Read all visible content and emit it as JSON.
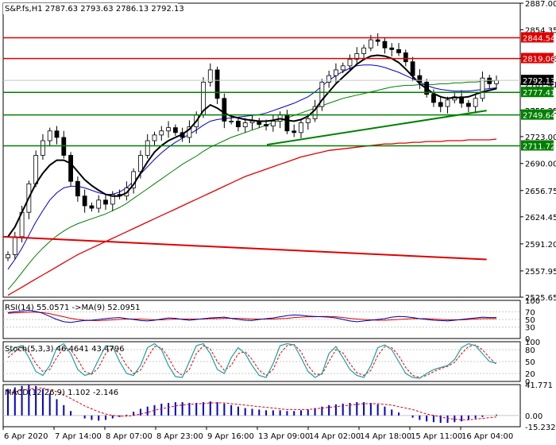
{
  "main_header": "S&P.fs,H1  2787.63 2793.63 2786.13 2792.13",
  "rsi_header": "RSI(14) 55.0571  ->MA(9) 52.0951",
  "stoch_header": "Stoch(5,3,3) 46.4641 43.4796",
  "macd_header": "MACD(12,26,9) 1.102 -2.146",
  "colors": {
    "frame": "#000000",
    "grid": "#c8c8c8",
    "hline_red": "#e00000",
    "hline_green": "#008000",
    "ma_black": "#000000",
    "ma_blue": "#0000cc",
    "ma_green": "#008000",
    "ma_red": "#e00000",
    "label_red_bg": "#e00000",
    "label_green_bg": "#008000",
    "label_current_bg": "#000000",
    "candle": "#000000",
    "rsi_line": "#0000aa",
    "rsi_signal": "#e00000",
    "stoch_main": "#20a0a0",
    "stoch_signal": "#e00000",
    "macd_hist": "#0000cc",
    "macd_signal": "#e00000"
  },
  "chart_data": [
    {
      "type": "candlestick",
      "symbol": "S&P.fs",
      "timeframe": "H1",
      "ohlc_last": {
        "open": 2787.63,
        "high": 2793.63,
        "low": 2786.13,
        "close": 2792.13
      },
      "ylim": [
        2525.65,
        2887.0
      ],
      "y_ticks": [
        2887.0,
        2854.35,
        2819.06,
        2787.41,
        2755.25,
        2723.0,
        2690.0,
        2656.75,
        2624.45,
        2591.2,
        2557.95,
        2525.65
      ],
      "x_ticks": [
        "6 Apr 2020",
        "7 Apr 14:00",
        "8 Apr 07:00",
        "8 Apr 23:00",
        "9 Apr 16:00",
        "13 Apr 09:00",
        "14 Apr 02:00",
        "14 Apr 18:00",
        "15 Apr 11:00",
        "16 Apr 04:00"
      ],
      "horizontal_levels": [
        {
          "value": 2844.54,
          "label": "2844.54",
          "color": "red"
        },
        {
          "value": 2819.06,
          "label": "2819.06",
          "color": "red"
        },
        {
          "value": 2792.13,
          "label": "2792.13",
          "color": "current"
        },
        {
          "value": 2777.41,
          "label": "2777.41",
          "color": "green"
        },
        {
          "value": 2749.64,
          "label": "2749.64",
          "color": "green"
        },
        {
          "value": 2711.72,
          "label": "2711.72",
          "color": "green"
        }
      ],
      "trendlines": [
        {
          "name": "uptrend-support",
          "color": "green",
          "from": [
            0.51,
            2713
          ],
          "to": [
            0.935,
            2755
          ]
        },
        {
          "name": "downtrend-resistance",
          "color": "red",
          "from": [
            0.0,
            2600
          ],
          "to": [
            0.935,
            2572
          ]
        }
      ],
      "close_path": [
        2578,
        2600,
        2630,
        2665,
        2700,
        2718,
        2730,
        2722,
        2700,
        2668,
        2650,
        2638,
        2635,
        2645,
        2640,
        2652,
        2650,
        2660,
        2680,
        2700,
        2718,
        2725,
        2730,
        2734,
        2728,
        2722,
        2735,
        2750,
        2790,
        2805,
        2770,
        2742,
        2742,
        2735,
        2740,
        2742,
        2738,
        2736,
        2742,
        2750,
        2730,
        2728,
        2740,
        2745,
        2760,
        2790,
        2798,
        2805,
        2810,
        2818,
        2825,
        2832,
        2842,
        2840,
        2832,
        2830,
        2826,
        2815,
        2798,
        2790,
        2775,
        2765,
        2760,
        2768,
        2772,
        2764,
        2760,
        2770,
        2795,
        2788,
        2792
      ],
      "ma_black": [
        2600,
        2612,
        2630,
        2648,
        2665,
        2678,
        2688,
        2694,
        2694,
        2690,
        2680,
        2670,
        2663,
        2657,
        2652,
        2650,
        2650,
        2654,
        2664,
        2678,
        2692,
        2704,
        2712,
        2718,
        2722,
        2726,
        2732,
        2742,
        2755,
        2762,
        2758,
        2752,
        2748,
        2746,
        2744,
        2743,
        2742,
        2742,
        2743,
        2745,
        2743,
        2742,
        2744,
        2748,
        2756,
        2768,
        2778,
        2788,
        2796,
        2804,
        2812,
        2818,
        2822,
        2823,
        2822,
        2819,
        2814,
        2806,
        2797,
        2788,
        2782,
        2776,
        2772,
        2770,
        2771,
        2771,
        2772,
        2775,
        2778,
        2780,
        2782
      ],
      "ma_blue": [
        2560,
        2572,
        2586,
        2602,
        2618,
        2632,
        2645,
        2654,
        2660,
        2662,
        2662,
        2660,
        2657,
        2654,
        2652,
        2652,
        2655,
        2660,
        2668,
        2677,
        2686,
        2695,
        2703,
        2710,
        2716,
        2721,
        2726,
        2731,
        2737,
        2742,
        2744,
        2745,
        2746,
        2747,
        2748,
        2749,
        2750,
        2752,
        2755,
        2758,
        2761,
        2764,
        2768,
        2772,
        2778,
        2785,
        2792,
        2798,
        2803,
        2807,
        2810,
        2811,
        2811,
        2810,
        2808,
        2805,
        2802,
        2798,
        2794,
        2790,
        2786,
        2783,
        2781,
        2780,
        2779,
        2779,
        2779,
        2780,
        2781,
        2782,
        2783
      ],
      "ma_green": [
        2535,
        2545,
        2556,
        2567,
        2577,
        2586,
        2594,
        2601,
        2607,
        2612,
        2616,
        2619,
        2622,
        2625,
        2628,
        2632,
        2636,
        2641,
        2647,
        2653,
        2659,
        2665,
        2671,
        2677,
        2683,
        2689,
        2694,
        2699,
        2705,
        2710,
        2714,
        2718,
        2722,
        2725,
        2728,
        2731,
        2734,
        2737,
        2740,
        2743,
        2746,
        2749,
        2752,
        2755,
        2758,
        2761,
        2764,
        2767,
        2770,
        2772,
        2774,
        2776,
        2778,
        2780,
        2782,
        2784,
        2785,
        2786,
        2786,
        2787,
        2787,
        2787,
        2788,
        2788,
        2789,
        2789,
        2790,
        2790,
        2791,
        2791,
        2792
      ],
      "ma_red": [
        2528,
        2533,
        2538,
        2543,
        2548,
        2553,
        2558,
        2563,
        2568,
        2573,
        2578,
        2582,
        2586,
        2590,
        2594,
        2598,
        2602,
        2606,
        2610,
        2614,
        2618,
        2622,
        2626,
        2630,
        2634,
        2638,
        2642,
        2646,
        2650,
        2654,
        2658,
        2662,
        2666,
        2670,
        2674,
        2677,
        2680,
        2683,
        2686,
        2689,
        2692,
        2695,
        2698,
        2700,
        2702,
        2704,
        2706,
        2707,
        2708,
        2709,
        2710,
        2711,
        2712,
        2713,
        2714,
        2714,
        2715,
        2715,
        2716,
        2716,
        2717,
        2717,
        2717,
        2718,
        2718,
        2718,
        2719,
        2719,
        2719,
        2719,
        2720
      ]
    },
    {
      "type": "line",
      "name": "RSI(14)",
      "ylim": [
        0,
        100
      ],
      "y_ticks": [
        100,
        70,
        50,
        30,
        0
      ],
      "series": [
        {
          "name": "RSI(14)",
          "last": 55.0571,
          "values": [
            68,
            70,
            72,
            74,
            71,
            66,
            58,
            50,
            44,
            42,
            45,
            47,
            48,
            50,
            52,
            54,
            55,
            52,
            50,
            47,
            46,
            48,
            51,
            54,
            53,
            50,
            48,
            50,
            52,
            54,
            55,
            56,
            53,
            50,
            48,
            47,
            50,
            52,
            54,
            57,
            60,
            62,
            61,
            59,
            58,
            57,
            56,
            54,
            50,
            46,
            44,
            46,
            48,
            50,
            52,
            56,
            58,
            57,
            55,
            52,
            50,
            48,
            47,
            46,
            48,
            50,
            52,
            54,
            56,
            55,
            55
          ]
        },
        {
          "name": "MA(9)",
          "last": 52.0951,
          "values": [
            66,
            67,
            68,
            69,
            69,
            68,
            65,
            61,
            57,
            53,
            50,
            48,
            47,
            47,
            48,
            49,
            50,
            51,
            51,
            51,
            50,
            49,
            49,
            50,
            51,
            51,
            51,
            51,
            51,
            52,
            52,
            53,
            53,
            53,
            52,
            51,
            51,
            51,
            51,
            52,
            53,
            55,
            56,
            57,
            57,
            58,
            58,
            57,
            55,
            53,
            51,
            50,
            49,
            48,
            48,
            49,
            50,
            51,
            52,
            52,
            52,
            51,
            50,
            49,
            49,
            49,
            50,
            51,
            52,
            52,
            52
          ]
        }
      ]
    },
    {
      "type": "line",
      "name": "Stoch(5,3,3)",
      "ylim": [
        0,
        100
      ],
      "y_ticks": [
        100,
        80,
        50,
        20,
        0
      ],
      "series": [
        {
          "name": "%K",
          "last": 46.4641,
          "values": [
            70,
            85,
            90,
            60,
            25,
            15,
            40,
            85,
            95,
            70,
            30,
            15,
            20,
            55,
            90,
            88,
            50,
            20,
            15,
            40,
            85,
            95,
            80,
            40,
            12,
            10,
            50,
            90,
            95,
            70,
            30,
            20,
            60,
            85,
            70,
            40,
            15,
            10,
            45,
            90,
            95,
            92,
            60,
            25,
            10,
            20,
            70,
            88,
            60,
            30,
            15,
            10,
            40,
            85,
            92,
            80,
            50,
            20,
            10,
            8,
            20,
            30,
            35,
            40,
            55,
            85,
            95,
            90,
            70,
            50,
            46
          ]
        },
        {
          "name": "%D",
          "last": 43.4796,
          "values": [
            60,
            75,
            85,
            75,
            45,
            25,
            30,
            60,
            85,
            80,
            55,
            25,
            18,
            35,
            70,
            85,
            70,
            40,
            20,
            28,
            60,
            88,
            85,
            60,
            28,
            15,
            30,
            70,
            90,
            82,
            50,
            28,
            40,
            70,
            75,
            55,
            28,
            15,
            30,
            70,
            90,
            93,
            75,
            40,
            18,
            18,
            50,
            80,
            72,
            45,
            22,
            15,
            28,
            65,
            88,
            85,
            65,
            35,
            15,
            10,
            15,
            25,
            32,
            38,
            48,
            70,
            88,
            92,
            80,
            60,
            43
          ]
        }
      ]
    },
    {
      "type": "bar",
      "name": "MACD(12,26,9)",
      "ylim": [
        -15.232,
        41.771
      ],
      "y_ticks": [
        41.771,
        0.0,
        -15.232
      ],
      "series": [
        {
          "name": "MACD",
          "last": 1.102,
          "values": [
            36,
            38,
            40,
            41,
            40,
            36,
            30,
            22,
            14,
            6,
            0,
            -4,
            -6,
            -7,
            -6,
            -4,
            -2,
            1,
            5,
            9,
            12,
            14,
            16,
            17,
            18,
            18,
            17,
            17,
            18,
            19,
            18,
            16,
            14,
            12,
            10,
            9,
            8,
            7,
            7,
            7,
            6,
            6,
            7,
            8,
            10,
            12,
            14,
            15,
            16,
            17,
            18,
            18,
            17,
            15,
            12,
            8,
            4,
            0,
            -3,
            -6,
            -8,
            -9,
            -10,
            -10,
            -9,
            -8,
            -6,
            -4,
            -2,
            0,
            1.1
          ]
        },
        {
          "name": "Signal",
          "last": -2.146,
          "values": [
            30,
            32,
            34,
            36,
            37,
            37,
            35,
            32,
            28,
            23,
            18,
            13,
            9,
            5,
            2,
            0,
            -1,
            -1,
            0,
            2,
            4,
            7,
            9,
            11,
            13,
            14,
            15,
            16,
            16,
            17,
            17,
            17,
            16,
            15,
            14,
            13,
            12,
            11,
            10,
            9,
            8,
            8,
            8,
            8,
            9,
            10,
            11,
            12,
            13,
            14,
            15,
            16,
            16,
            16,
            15,
            14,
            12,
            10,
            8,
            5,
            2,
            0,
            -2,
            -4,
            -5,
            -6,
            -6,
            -5,
            -4,
            -3,
            -2.1
          ]
        }
      ]
    }
  ]
}
